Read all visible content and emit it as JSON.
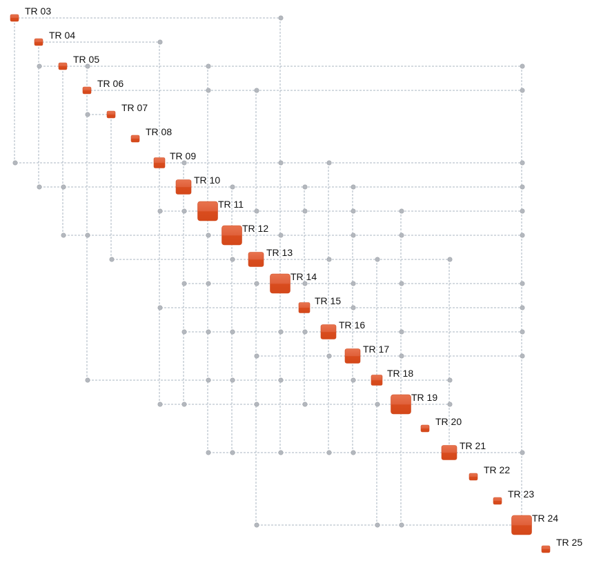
{
  "nodes": [
    {
      "label": "TR 03",
      "size": 1
    },
    {
      "label": "TR 04",
      "size": 1
    },
    {
      "label": "TR 05",
      "size": 1
    },
    {
      "label": "TR 06",
      "size": 1
    },
    {
      "label": "TR 07",
      "size": 1
    },
    {
      "label": "TR 08",
      "size": 1
    },
    {
      "label": "TR 09",
      "size": 2
    },
    {
      "label": "TR 10",
      "size": 3
    },
    {
      "label": "TR 11",
      "size": 4
    },
    {
      "label": "TR 12",
      "size": 4
    },
    {
      "label": "TR 13",
      "size": 3
    },
    {
      "label": "TR 14",
      "size": 4
    },
    {
      "label": "TR 15",
      "size": 2
    },
    {
      "label": "TR 16",
      "size": 3
    },
    {
      "label": "TR 17",
      "size": 3
    },
    {
      "label": "TR 18",
      "size": 2
    },
    {
      "label": "TR 19",
      "size": 4
    },
    {
      "label": "TR 20",
      "size": 1
    },
    {
      "label": "TR 21",
      "size": 3
    },
    {
      "label": "TR 22",
      "size": 1
    },
    {
      "label": "TR 23",
      "size": 1
    },
    {
      "label": "TR 24",
      "size": 4
    },
    {
      "label": "TR 25",
      "size": 1
    }
  ],
  "edges": {
    "TR 03": [
      "TR 14"
    ],
    "TR 04": [
      "TR 09"
    ],
    "TR 05": [
      "TR 04",
      "TR 06",
      "TR 11",
      "TR 24"
    ],
    "TR 06": [
      "TR 11",
      "TR 13",
      "TR 24"
    ],
    "TR 07": [
      "TR 06"
    ],
    "TR 09": [
      "TR 03",
      "TR 10",
      "TR 14",
      "TR 16",
      "TR 24"
    ],
    "TR 10": [
      "TR 04",
      "TR 05",
      "TR 12",
      "TR 15",
      "TR 17",
      "TR 24"
    ],
    "TR 11": [
      "TR 09",
      "TR 10",
      "TR 13",
      "TR 15",
      "TR 17",
      "TR 19",
      "TR 24"
    ],
    "TR 12": [
      "TR 05",
      "TR 06",
      "TR 11",
      "TR 14",
      "TR 17",
      "TR 19",
      "TR 24"
    ],
    "TR 13": [
      "TR 07",
      "TR 12",
      "TR 16",
      "TR 18",
      "TR 21"
    ],
    "TR 14": [
      "TR 10",
      "TR 11",
      "TR 13",
      "TR 15",
      "TR 17",
      "TR 19",
      "TR 24"
    ],
    "TR 15": [
      "TR 09",
      "TR 17",
      "TR 24"
    ],
    "TR 16": [
      "TR 10",
      "TR 11",
      "TR 12",
      "TR 14",
      "TR 15",
      "TR 19",
      "TR 24"
    ],
    "TR 17": [
      "TR 13",
      "TR 16",
      "TR 19",
      "TR 24"
    ],
    "TR 18": [
      "TR 06",
      "TR 11",
      "TR 12",
      "TR 14",
      "TR 17",
      "TR 21"
    ],
    "TR 19": [
      "TR 09",
      "TR 10",
      "TR 13",
      "TR 15",
      "TR 18",
      "TR 21"
    ],
    "TR 21": [
      "TR 11",
      "TR 12",
      "TR 14",
      "TR 16",
      "TR 17",
      "TR 24"
    ],
    "TR 24": [
      "TR 13",
      "TR 18",
      "TR 19"
    ]
  },
  "colors": {
    "node_top": "#e56b48",
    "node_bottom": "#d84a1b",
    "edge": "#a9b4c2",
    "dot": "#b4b8be"
  }
}
